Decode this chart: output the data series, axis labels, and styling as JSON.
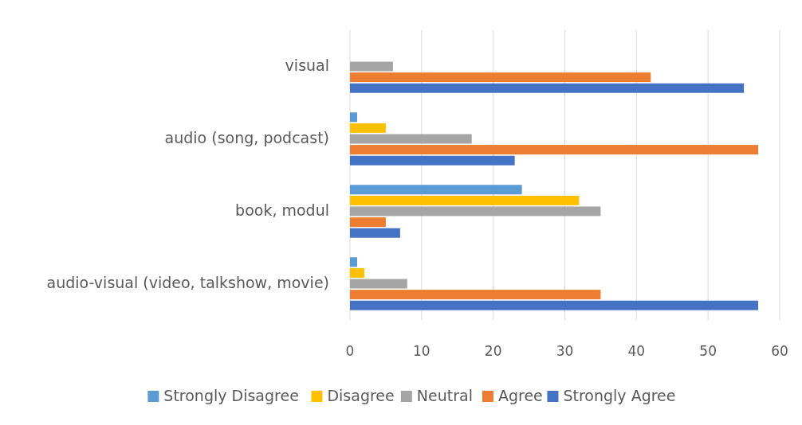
{
  "chart_data": {
    "type": "bar",
    "orientation": "horizontal",
    "categories": [
      "visual",
      "audio (song, podcast)",
      "book, modul",
      "audio-visual (video, talkshow, movie)"
    ],
    "series": [
      {
        "name": "Strongly Disagree",
        "color": "#5b9bd5",
        "values": [
          0,
          1,
          24,
          1
        ]
      },
      {
        "name": "Disagree",
        "color": "#ffc000",
        "values": [
          0,
          5,
          32,
          2
        ]
      },
      {
        "name": "Neutral",
        "color": "#a5a5a5",
        "values": [
          6,
          17,
          35,
          8
        ]
      },
      {
        "name": "Agree",
        "color": "#ed7d31",
        "values": [
          42,
          57,
          5,
          35
        ]
      },
      {
        "name": "Strongly Agree",
        "color": "#4472c4",
        "values": [
          55,
          23,
          7,
          57
        ]
      }
    ],
    "xlim": [
      0,
      60
    ],
    "xticks": [
      0,
      10,
      20,
      30,
      40,
      50,
      60
    ],
    "grid": "x",
    "legend": "bottom"
  }
}
